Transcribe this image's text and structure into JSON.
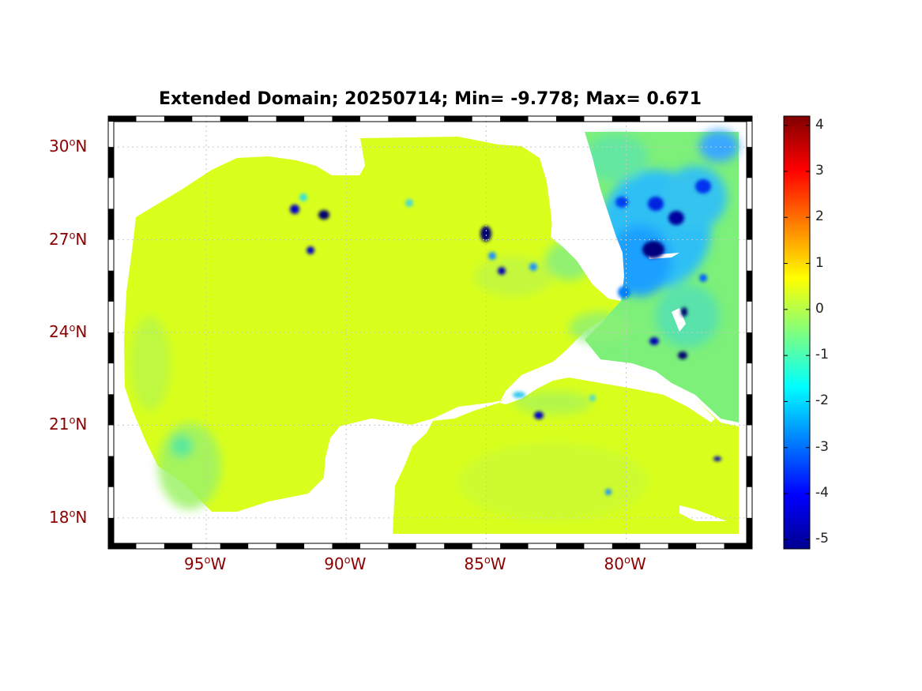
{
  "title": "Extended Domain; 20250714; Min= -9.778; Max= 0.671",
  "map": {
    "lon_range": [
      -98.5,
      -75.5
    ],
    "lat_range": [
      17.0,
      31.0
    ],
    "lat_labels": [
      {
        "lat": 30,
        "deg": "30",
        "hemi": "N"
      },
      {
        "lat": 27,
        "deg": "27",
        "hemi": "N"
      },
      {
        "lat": 24,
        "deg": "24",
        "hemi": "N"
      },
      {
        "lat": 21,
        "deg": "21",
        "hemi": "N"
      },
      {
        "lat": 18,
        "deg": "18",
        "hemi": "N"
      }
    ],
    "lon_labels": [
      {
        "lon": -95,
        "deg": "95",
        "hemi": "W"
      },
      {
        "lon": -90,
        "deg": "90",
        "hemi": "W"
      },
      {
        "lon": -85,
        "deg": "85",
        "hemi": "W"
      },
      {
        "lon": -80,
        "deg": "80",
        "hemi": "W"
      }
    ],
    "grid": true,
    "colormap": "jet"
  },
  "colorbar": {
    "min": -5.2,
    "max": 4.2,
    "ticks": [
      "4",
      "3",
      "2",
      "1",
      "0",
      "-1",
      "-2",
      "-3",
      "-4",
      "-5"
    ],
    "tick_values": [
      4,
      3,
      2,
      1,
      0,
      -1,
      -2,
      -3,
      -4,
      -5
    ]
  }
}
